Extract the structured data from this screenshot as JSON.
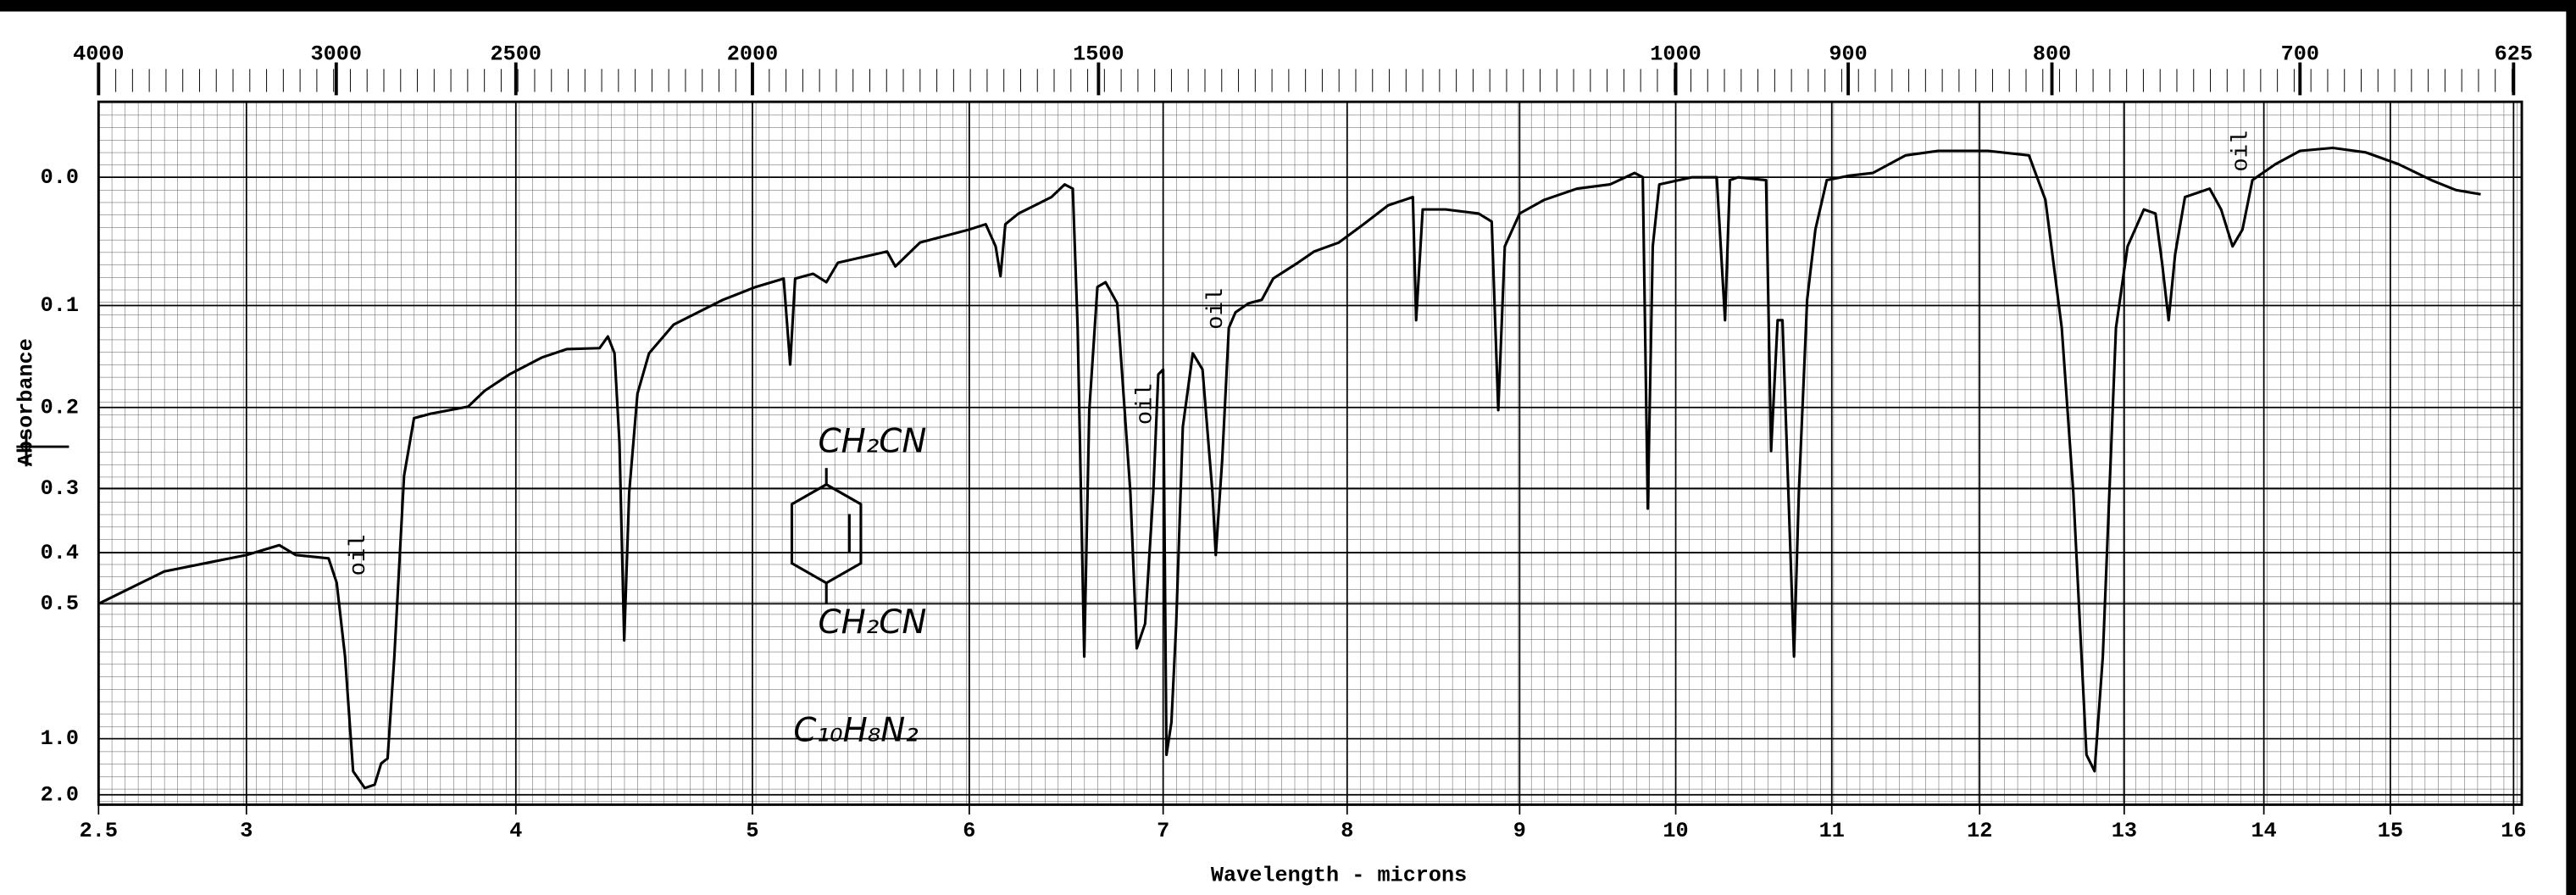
{
  "chart_data": {
    "type": "line",
    "x_label": "Wavelength - microns",
    "y_label": "Absorbance",
    "y_scale": "absorbance",
    "grid": true,
    "color": "#000000",
    "xlim": [
      2.5,
      16
    ],
    "xticks": [
      2.5,
      3,
      4,
      5,
      6,
      7,
      8,
      9,
      10,
      11,
      12,
      13,
      14,
      15,
      16
    ],
    "x2ticks": [
      4000,
      3000,
      2500,
      2000,
      1500,
      1000,
      900,
      800,
      700,
      625
    ],
    "ylim": [
      2,
      -0.05
    ],
    "yticks": [
      {
        "value": 0,
        "label": "0.0"
      },
      0.1,
      0.2,
      0.3,
      0.4,
      0.5,
      {
        "value": 1,
        "label": "1.0"
      },
      {
        "value": 2,
        "label": "2.0"
      }
    ],
    "annotations": [
      "oil",
      "oil",
      "oil",
      "oil",
      "CH₂CN",
      "CH₂CN",
      "C₁₀H₈N₂"
    ],
    "x": [
      2.5,
      2.722,
      3.0,
      3.122,
      3.183,
      3.305,
      3.335,
      3.366,
      3.396,
      3.439,
      3.476,
      3.5,
      3.524,
      3.549,
      3.585,
      3.622,
      3.683,
      3.823,
      3.884,
      3.976,
      4.111,
      4.215,
      4.354,
      4.389,
      4.417,
      4.438,
      4.458,
      4.479,
      4.514,
      4.563,
      4.667,
      4.875,
      5.015,
      5.144,
      5.174,
      5.197,
      5.28,
      5.341,
      5.394,
      5.621,
      5.659,
      5.773,
      6.0,
      6.085,
      6.136,
      6.161,
      6.186,
      6.254,
      6.339,
      6.424,
      6.492,
      6.534,
      6.559,
      6.593,
      6.619,
      6.661,
      6.703,
      6.763,
      6.831,
      6.864,
      6.907,
      6.949,
      6.975,
      7.0,
      7.018,
      7.045,
      7.071,
      7.107,
      7.161,
      7.214,
      7.268,
      7.286,
      7.321,
      7.357,
      7.393,
      7.464,
      7.536,
      7.598,
      7.732,
      7.821,
      7.955,
      8.095,
      8.238,
      8.333,
      8.381,
      8.4,
      8.438,
      8.571,
      8.762,
      8.838,
      8.876,
      8.914,
      9.0,
      9.158,
      9.368,
      9.579,
      9.737,
      9.789,
      9.821,
      9.853,
      9.895,
      10.105,
      10.263,
      10.316,
      10.347,
      10.4,
      10.579,
      10.611,
      10.653,
      10.684,
      10.758,
      10.789,
      10.842,
      10.895,
      10.968,
      11.111,
      11.278,
      11.5,
      11.722,
      12.057,
      12.341,
      12.455,
      12.568,
      12.648,
      12.739,
      12.795,
      12.852,
      12.943,
      13.024,
      13.141,
      13.224,
      13.271,
      13.318,
      13.365,
      13.435,
      13.612,
      13.694,
      13.776,
      13.847,
      13.918,
      14.091,
      14.286,
      14.545,
      14.805,
      15.067,
      15.333,
      15.533,
      15.733
    ],
    "values": [
      0.5,
      0.434,
      0.404,
      0.387,
      0.404,
      0.41,
      0.456,
      0.635,
      1.32,
      1.68,
      1.58,
      1.22,
      1.165,
      0.635,
      0.283,
      0.212,
      0.207,
      0.199,
      0.182,
      0.165,
      0.148,
      0.14,
      0.139,
      0.128,
      0.144,
      0.241,
      0.589,
      0.306,
      0.185,
      0.144,
      0.117,
      0.095,
      0.084,
      0.077,
      0.155,
      0.077,
      0.073,
      0.08,
      0.064,
      0.055,
      0.067,
      0.048,
      0.038,
      0.034,
      0.051,
      0.075,
      0.034,
      0.026,
      0.02,
      0.014,
      0.005,
      0.008,
      0.12,
      0.635,
      0.203,
      0.084,
      0.08,
      0.098,
      0.306,
      0.611,
      0.546,
      0.306,
      0.165,
      0.16,
      1.13,
      0.899,
      0.546,
      0.222,
      0.144,
      0.16,
      0.306,
      0.404,
      0.262,
      0.12,
      0.106,
      0.098,
      0.095,
      0.077,
      0.064,
      0.055,
      0.048,
      0.034,
      0.02,
      0.016,
      0.014,
      0.113,
      0.023,
      0.023,
      0.026,
      0.032,
      0.203,
      0.051,
      0.026,
      0.016,
      0.008,
      0.005,
      -0.003,
      0,
      0.329,
      0.051,
      0.005,
      0,
      0,
      0.113,
      0.002,
      0,
      0.002,
      0.251,
      0.113,
      0.113,
      0.635,
      0.306,
      0.095,
      0.038,
      0.002,
      -0.001,
      -0.003,
      -0.015,
      -0.018,
      -0.018,
      -0.015,
      0.016,
      0.12,
      0.306,
      1.13,
      1.32,
      0.635,
      0.12,
      0.051,
      0.023,
      0.026,
      0.064,
      0.113,
      0.057,
      0.014,
      0.008,
      0.023,
      0.051,
      0.038,
      0.002,
      -0.009,
      -0.018,
      -0.02,
      -0.017,
      -0.009,
      0.002,
      0.009,
      0.012
    ]
  }
}
